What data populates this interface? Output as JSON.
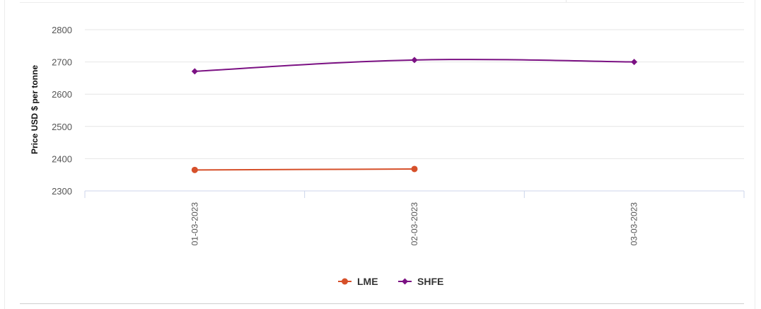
{
  "chart_data": {
    "type": "line",
    "title": "",
    "xlabel": "",
    "ylabel": "Price USD $ per tonne",
    "categories": [
      "01-03-2023",
      "02-03-2023",
      "03-03-2023"
    ],
    "yticks": [
      2300,
      2400,
      2500,
      2600,
      2700,
      2800
    ],
    "ylim": [
      2300,
      2800
    ],
    "grid": true,
    "legend_position": "bottom-center",
    "series": [
      {
        "name": "LME",
        "color": "#d6502a",
        "marker": "circle",
        "values": [
          2365,
          2368,
          null
        ]
      },
      {
        "name": "SHFE",
        "color": "#7b1183",
        "marker": "diamond",
        "values": [
          2671,
          2706,
          2700
        ]
      }
    ]
  }
}
